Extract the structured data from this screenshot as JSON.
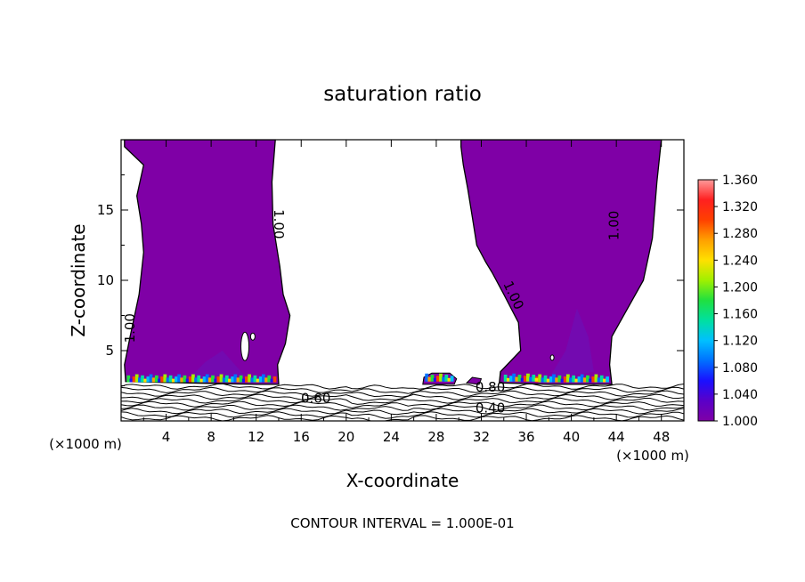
{
  "chart_data": {
    "type": "contour",
    "title": "saturation ratio",
    "xlabel": "X-coordinate",
    "ylabel": "Z-coordinate",
    "x_unit_note": "(×1000 m)",
    "x_unit_note_right": "(×1000 m)",
    "footer": "CONTOUR INTERVAL = 1.000E-01",
    "xlim": [
      0,
      50
    ],
    "ylim": [
      0,
      20
    ],
    "xticks": [
      4,
      8,
      12,
      16,
      20,
      24,
      28,
      32,
      36,
      40,
      44,
      48
    ],
    "yticks": [
      5,
      10,
      15
    ],
    "colorbar": {
      "min": 1.0,
      "max": 1.36,
      "ticks": [
        "1.360",
        "1.320",
        "1.280",
        "1.240",
        "1.200",
        "1.160",
        "1.120",
        "1.080",
        "1.040",
        "1.000"
      ],
      "colors": [
        "#7f00a6",
        "#5a00c8",
        "#1a10ff",
        "#0070ff",
        "#00c0ff",
        "#00e0a0",
        "#20e040",
        "#a0f000",
        "#ffe000",
        "#ffa000",
        "#ff4000",
        "#ff2020",
        "#ff9a9a"
      ]
    },
    "contour_labels": [
      {
        "text": "1.00",
        "x": 13.6,
        "y": 14.0,
        "rotate": 90
      },
      {
        "text": "1.00",
        "x": 1.2,
        "y": 6.6,
        "rotate": -90
      },
      {
        "text": "1.00",
        "x": 34.5,
        "y": 8.8,
        "rotate": 65
      },
      {
        "text": "1.00",
        "x": 44.2,
        "y": 13.9,
        "rotate": -90
      },
      {
        "text": "0.60",
        "x": 17.3,
        "y": 1.3,
        "rotate": 0
      },
      {
        "text": "0.80",
        "x": 32.8,
        "y": 2.1,
        "rotate": 0
      },
      {
        "text": "0.40",
        "x": 32.8,
        "y": 0.6,
        "rotate": 0
      }
    ]
  }
}
